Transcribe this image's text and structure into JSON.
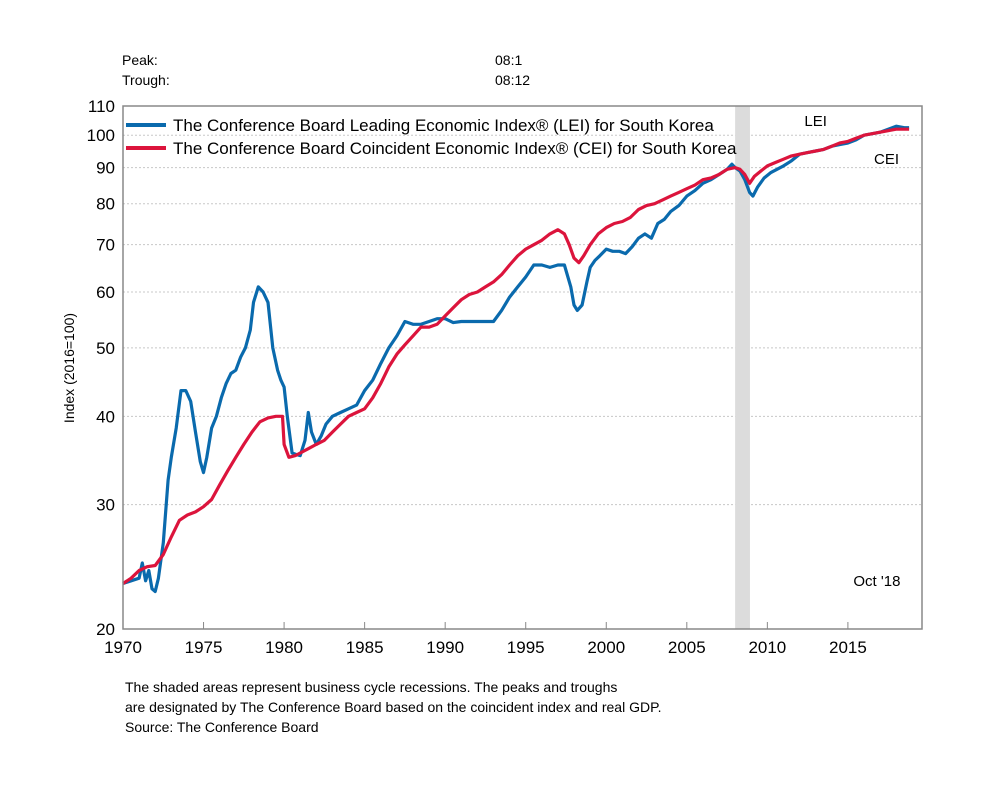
{
  "header": {
    "peak_label": "Peak:",
    "peak_value": "08:1",
    "trough_label": "Trough:",
    "trough_value": "08:12"
  },
  "chart_data": {
    "type": "line",
    "title": "",
    "xlabel": "",
    "ylabel": "Index (2016=100)",
    "yscale": "log",
    "ylim": [
      20,
      110
    ],
    "xlim": [
      1970,
      2019.6
    ],
    "yticks": [
      20,
      30,
      40,
      50,
      60,
      70,
      80,
      90,
      100,
      110
    ],
    "ytick_labels": [
      "20",
      "30",
      "40",
      "50",
      "60",
      "70",
      "80",
      "90",
      "100",
      "110"
    ],
    "xticks": [
      1970,
      1975,
      1980,
      1985,
      1990,
      1995,
      2000,
      2005,
      2010,
      2015
    ],
    "xtick_labels": [
      "1970",
      "1975",
      "1980",
      "1985",
      "1990",
      "1995",
      "2000",
      "2005",
      "2010",
      "2015"
    ],
    "grid": "horizontal-dotted",
    "legend_position": "top-left",
    "recessions": [
      {
        "start": 2008.0,
        "end": 2008.92
      }
    ],
    "annotations": [
      {
        "text": "LEI",
        "x": 2013.0,
        "y": 103
      },
      {
        "text": "CEI",
        "x": 2017.4,
        "y": 91
      },
      {
        "text": "Oct '18",
        "x": 2016.8,
        "y": 23
      }
    ],
    "series": [
      {
        "name": "The Conference Board Leading Economic Index® (LEI) for South Korea",
        "short": "LEI",
        "color": "#0a6aad",
        "x": [
          1970.0,
          1970.5,
          1971.0,
          1971.2,
          1971.4,
          1971.6,
          1971.8,
          1972.0,
          1972.2,
          1972.5,
          1972.8,
          1973.0,
          1973.3,
          1973.6,
          1973.9,
          1974.2,
          1974.5,
          1974.8,
          1975.0,
          1975.2,
          1975.5,
          1975.8,
          1976.1,
          1976.4,
          1976.7,
          1977.0,
          1977.3,
          1977.6,
          1977.9,
          1978.1,
          1978.4,
          1978.7,
          1979.0,
          1979.3,
          1979.6,
          1979.8,
          1980.0,
          1980.2,
          1980.5,
          1980.8,
          1981.0,
          1981.3,
          1981.5,
          1981.7,
          1982.0,
          1982.3,
          1982.6,
          1983.0,
          1983.5,
          1984.0,
          1984.5,
          1985.0,
          1985.5,
          1986.0,
          1986.5,
          1987.0,
          1987.5,
          1988.0,
          1988.5,
          1989.0,
          1989.5,
          1990.0,
          1990.5,
          1991.0,
          1991.5,
          1992.0,
          1992.5,
          1993.0,
          1993.5,
          1994.0,
          1994.5,
          1995.0,
          1995.5,
          1996.0,
          1996.5,
          1997.0,
          1997.4,
          1997.8,
          1998.0,
          1998.2,
          1998.5,
          1998.8,
          1999.0,
          1999.3,
          1999.6,
          2000.0,
          2000.4,
          2000.8,
          2001.2,
          2001.6,
          2002.0,
          2002.4,
          2002.8,
          2003.2,
          2003.6,
          2004.0,
          2004.5,
          2005.0,
          2005.5,
          2006.0,
          2006.5,
          2007.0,
          2007.5,
          2007.8,
          2008.0,
          2008.3,
          2008.6,
          2008.9,
          2009.1,
          2009.4,
          2009.8,
          2010.2,
          2010.6,
          2011.0,
          2011.5,
          2012.0,
          2012.5,
          2013.0,
          2013.5,
          2014.0,
          2014.5,
          2015.0,
          2015.5,
          2016.0,
          2016.5,
          2017.0,
          2017.5,
          2018.0,
          2018.5,
          2018.8
        ],
        "values": [
          23.2,
          23.4,
          23.6,
          24.8,
          23.4,
          24.2,
          22.8,
          22.6,
          23.6,
          26.5,
          32.5,
          35.0,
          38.5,
          43.5,
          43.5,
          42.0,
          38.0,
          34.5,
          33.3,
          35.0,
          38.5,
          40.0,
          42.5,
          44.5,
          46.0,
          46.5,
          48.5,
          50.0,
          53.0,
          58.0,
          61.0,
          60.0,
          58.0,
          50.0,
          46.5,
          45.0,
          44.0,
          40.0,
          35.5,
          35.3,
          35.2,
          37.0,
          40.5,
          38.0,
          36.5,
          37.5,
          39.0,
          40.0,
          40.5,
          41.0,
          41.5,
          43.5,
          45.0,
          47.5,
          50.0,
          52.0,
          54.5,
          54.0,
          54.0,
          54.5,
          55.0,
          55.0,
          54.3,
          54.5,
          54.5,
          54.5,
          54.5,
          54.5,
          56.5,
          59.0,
          61.0,
          63.0,
          65.5,
          65.5,
          65.0,
          65.5,
          65.5,
          61.0,
          57.5,
          56.5,
          57.5,
          62.0,
          65.0,
          66.5,
          67.5,
          69.0,
          68.5,
          68.5,
          68.0,
          69.5,
          71.5,
          72.5,
          71.5,
          75.0,
          76.0,
          78.0,
          79.5,
          82.0,
          83.5,
          85.5,
          86.5,
          88.0,
          89.5,
          91.0,
          90.0,
          89.0,
          86.5,
          83.0,
          82.0,
          84.5,
          87.0,
          88.5,
          89.5,
          90.5,
          92.0,
          94.0,
          94.5,
          95.0,
          95.5,
          96.5,
          97.0,
          97.5,
          98.5,
          100.0,
          100.5,
          101.0,
          102.0,
          103.0,
          102.5,
          102.5
        ]
      },
      {
        "name": "The Conference Board Coincident Economic Index® (CEI) for South Korea",
        "short": "CEI",
        "color": "#dc143c",
        "x": [
          1970.0,
          1970.5,
          1971.0,
          1971.5,
          1972.0,
          1972.5,
          1973.0,
          1973.5,
          1974.0,
          1974.5,
          1975.0,
          1975.5,
          1976.0,
          1976.5,
          1977.0,
          1977.5,
          1978.0,
          1978.5,
          1979.0,
          1979.5,
          1979.9,
          1980.0,
          1980.3,
          1980.7,
          1981.0,
          1981.5,
          1982.0,
          1982.5,
          1983.0,
          1983.5,
          1984.0,
          1984.5,
          1985.0,
          1985.5,
          1986.0,
          1986.5,
          1987.0,
          1987.5,
          1988.0,
          1988.5,
          1989.0,
          1989.5,
          1990.0,
          1990.5,
          1991.0,
          1991.5,
          1992.0,
          1992.5,
          1993.0,
          1993.5,
          1994.0,
          1994.5,
          1995.0,
          1995.5,
          1996.0,
          1996.5,
          1997.0,
          1997.4,
          1997.7,
          1998.0,
          1998.3,
          1998.6,
          1999.0,
          1999.5,
          2000.0,
          2000.5,
          2001.0,
          2001.5,
          2002.0,
          2002.5,
          2003.0,
          2003.5,
          2004.0,
          2004.5,
          2005.0,
          2005.5,
          2006.0,
          2006.5,
          2007.0,
          2007.5,
          2008.0,
          2008.3,
          2008.6,
          2008.9,
          2009.2,
          2009.6,
          2010.0,
          2010.5,
          2011.0,
          2011.5,
          2012.0,
          2012.5,
          2013.0,
          2013.5,
          2014.0,
          2014.5,
          2015.0,
          2015.5,
          2016.0,
          2016.5,
          2017.0,
          2017.5,
          2018.0,
          2018.5,
          2018.8
        ],
        "values": [
          23.2,
          23.6,
          24.2,
          24.5,
          24.6,
          25.5,
          27.0,
          28.5,
          29.0,
          29.3,
          29.8,
          30.5,
          32.0,
          33.5,
          35.0,
          36.5,
          38.0,
          39.3,
          39.8,
          40.0,
          40.0,
          36.5,
          35.0,
          35.2,
          35.5,
          36.0,
          36.5,
          37.0,
          38.0,
          39.0,
          40.0,
          40.5,
          41.0,
          42.5,
          44.5,
          47.0,
          49.0,
          50.5,
          52.0,
          53.5,
          53.5,
          54.0,
          55.5,
          57.0,
          58.5,
          59.5,
          60.0,
          61.0,
          62.0,
          63.5,
          65.5,
          67.5,
          69.0,
          70.0,
          71.0,
          72.5,
          73.5,
          72.5,
          70.0,
          67.0,
          66.0,
          67.5,
          70.0,
          72.5,
          74.0,
          75.0,
          75.5,
          76.5,
          78.5,
          79.5,
          80.0,
          81.0,
          82.0,
          83.0,
          84.0,
          85.0,
          86.5,
          87.0,
          88.0,
          89.5,
          90.0,
          89.5,
          88.0,
          85.5,
          87.5,
          89.0,
          90.5,
          91.5,
          92.5,
          93.5,
          94.0,
          94.5,
          95.0,
          95.5,
          96.5,
          97.5,
          98.0,
          99.0,
          100.0,
          100.5,
          101.0,
          101.5,
          102.0,
          102.0,
          102.0
        ]
      }
    ]
  },
  "footnote": {
    "line1": "The shaded areas represent business cycle recessions. The peaks and troughs",
    "line2": "are designated by The Conference Board based on the coincident index and real GDP.",
    "source": "Source: The Conference Board"
  }
}
